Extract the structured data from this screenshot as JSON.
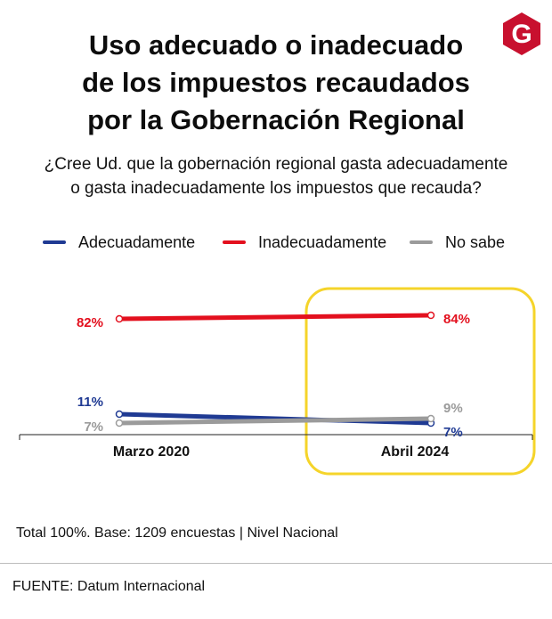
{
  "title_lines": [
    "Uso adecuado o inadecuado",
    "de los impuestos recaudados",
    "por la Gobernación Regional"
  ],
  "subtitle_lines": [
    "¿Cree Ud. que la gobernación regional gasta adecuadamente",
    "o gasta inadecuadamente los impuestos que recauda?"
  ],
  "logo": {
    "letter": "G",
    "color": "#c8102e"
  },
  "legend": [
    {
      "name": "Adecuadamente",
      "color": "#1f3a93"
    },
    {
      "name": "Inadecuadamente",
      "color": "#e3101e"
    },
    {
      "name": "No sabe",
      "color": "#9b9b9b"
    }
  ],
  "chart_data": {
    "type": "line",
    "title": "Uso adecuado o inadecuado de los impuestos recaudados por la Gobernación Regional",
    "categories": [
      "Marzo 2020",
      "Abril 2024"
    ],
    "series": [
      {
        "name": "Adecuadamente",
        "values": [
          11,
          7
        ],
        "labels": [
          "11%",
          "7%"
        ],
        "color": "#1f3a93"
      },
      {
        "name": "Inadecuadamente",
        "values": [
          82,
          84
        ],
        "labels": [
          "82%",
          "84%"
        ],
        "color": "#e3101e"
      },
      {
        "name": "No sabe",
        "values": [
          7,
          9
        ],
        "labels": [
          "7%",
          "9%"
        ],
        "color": "#9b9b9b"
      }
    ],
    "highlight_category": "Abril 2024",
    "highlight_color": "#f5d42a",
    "ylim": [
      0,
      100
    ],
    "grid": false,
    "legend_position": "top"
  },
  "footnote": "Total 100%. Base: 1209 encuestas | Nivel Nacional",
  "source": "FUENTE: Datum Internacional"
}
